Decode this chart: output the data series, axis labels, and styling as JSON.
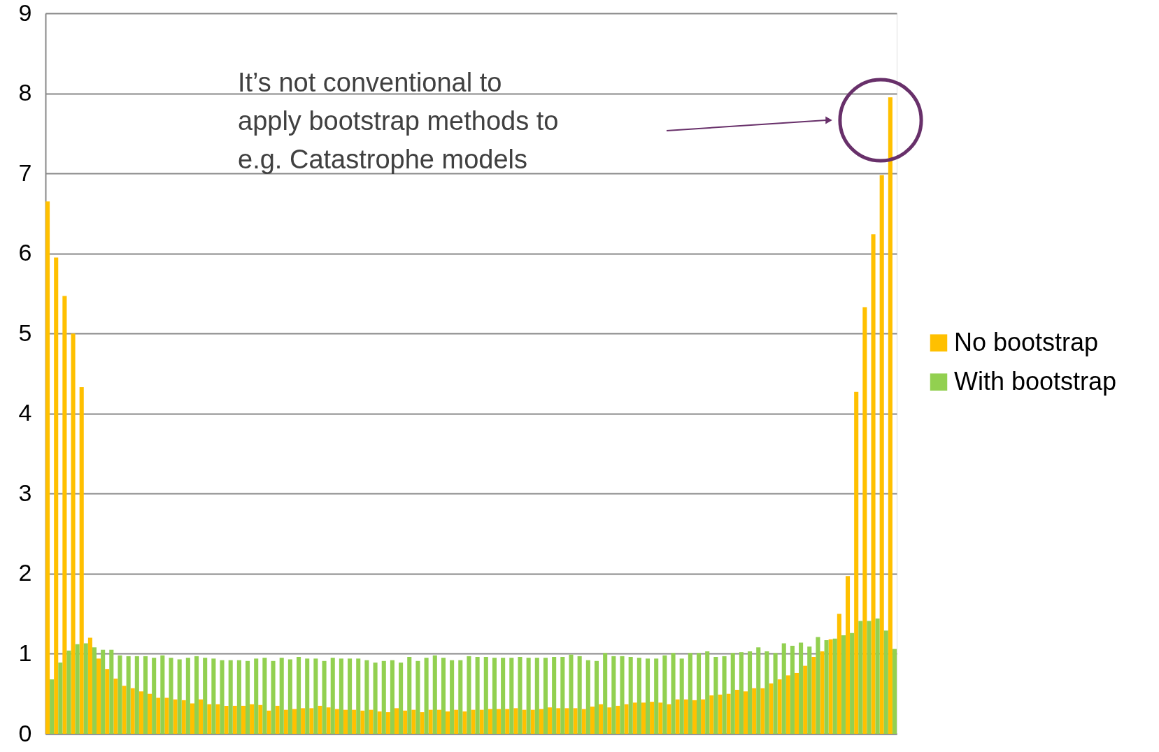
{
  "chart_data": {
    "type": "bar",
    "categories": [
      null,
      null,
      null,
      null,
      null,
      null,
      null,
      null,
      null,
      null,
      null,
      null,
      null,
      null,
      null,
      null,
      null,
      null,
      null,
      null,
      null,
      null,
      null,
      null,
      null,
      null,
      null,
      null,
      null,
      null,
      null,
      null,
      null,
      null,
      null,
      null,
      null,
      null,
      null,
      null,
      null,
      null,
      null,
      null,
      null,
      null,
      null,
      null,
      null,
      null,
      null,
      null,
      null,
      null,
      null,
      null,
      null,
      null,
      null,
      null,
      null,
      null,
      null,
      null,
      null,
      null,
      null,
      null,
      null,
      null,
      null,
      null,
      null,
      null,
      null,
      null,
      null,
      null,
      null,
      null,
      null,
      null,
      null,
      null,
      null,
      null,
      null,
      null,
      null,
      null,
      null,
      null,
      null,
      null,
      null,
      null,
      null,
      null,
      null,
      null
    ],
    "series": [
      {
        "name": "No bootstrap",
        "color": "#ffc000",
        "values": [
          6.65,
          5.95,
          5.47,
          5.0,
          4.33,
          1.2,
          0.94,
          0.81,
          0.69,
          0.6,
          0.57,
          0.53,
          0.5,
          0.45,
          0.45,
          0.43,
          0.42,
          0.38,
          0.43,
          0.37,
          0.37,
          0.35,
          0.35,
          0.35,
          0.37,
          0.36,
          0.29,
          0.35,
          0.3,
          0.31,
          0.32,
          0.32,
          0.35,
          0.33,
          0.31,
          0.3,
          0.3,
          0.29,
          0.3,
          0.28,
          0.27,
          0.32,
          0.29,
          0.3,
          0.27,
          0.3,
          0.3,
          0.28,
          0.3,
          0.28,
          0.3,
          0.3,
          0.31,
          0.31,
          0.31,
          0.32,
          0.3,
          0.3,
          0.31,
          0.33,
          0.32,
          0.32,
          0.32,
          0.31,
          0.34,
          0.37,
          0.33,
          0.35,
          0.37,
          0.39,
          0.39,
          0.4,
          0.39,
          0.37,
          0.43,
          0.43,
          0.42,
          0.43,
          0.48,
          0.49,
          0.5,
          0.55,
          0.53,
          0.57,
          0.57,
          0.63,
          0.68,
          0.73,
          0.76,
          0.85,
          0.96,
          1.03,
          1.18,
          1.5,
          1.97,
          4.27,
          5.33,
          6.24,
          6.98,
          7.95
        ]
      },
      {
        "name": "With bootstrap",
        "color": "#92d050",
        "values": [
          0.68,
          0.89,
          1.04,
          1.12,
          1.13,
          1.08,
          1.05,
          1.05,
          0.98,
          0.97,
          0.97,
          0.97,
          0.95,
          0.98,
          0.95,
          0.93,
          0.95,
          0.97,
          0.95,
          0.94,
          0.92,
          0.92,
          0.92,
          0.91,
          0.94,
          0.95,
          0.91,
          0.95,
          0.93,
          0.96,
          0.94,
          0.94,
          0.91,
          0.95,
          0.94,
          0.94,
          0.94,
          0.92,
          0.89,
          0.91,
          0.92,
          0.89,
          0.96,
          0.91,
          0.95,
          0.98,
          0.95,
          0.92,
          0.92,
          0.97,
          0.96,
          0.96,
          0.95,
          0.95,
          0.95,
          0.96,
          0.95,
          0.95,
          0.95,
          0.96,
          0.96,
          0.99,
          0.97,
          0.92,
          0.91,
          1.01,
          0.97,
          0.97,
          0.96,
          0.95,
          0.94,
          0.94,
          0.98,
          1.01,
          0.94,
          1.01,
          1.01,
          1.03,
          0.96,
          0.97,
          1.01,
          1.02,
          1.03,
          1.08,
          1.03,
          1.01,
          1.13,
          1.1,
          1.14,
          1.09,
          1.21,
          1.17,
          1.19,
          1.23,
          1.26,
          1.41,
          1.41,
          1.44,
          1.29,
          1.06
        ]
      }
    ],
    "ylim": [
      0,
      9
    ],
    "yticks": [
      0,
      1,
      2,
      3,
      4,
      5,
      6,
      7,
      8,
      9
    ],
    "grid": "y",
    "legend": "right",
    "tick_labels": "y",
    "annotations": [
      "It’s not conventional to\napply bootstrap methods to\ne.g. Catastrophe models"
    ]
  }
}
